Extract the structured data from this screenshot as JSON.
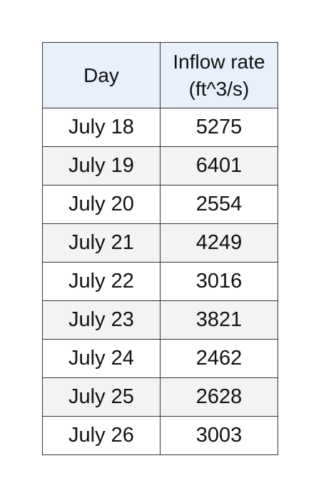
{
  "table": {
    "columns": [
      "Day",
      "Inflow rate",
      "(ft^3/s)"
    ],
    "rows": [
      [
        "July 18",
        "5275"
      ],
      [
        "July 19",
        "6401"
      ],
      [
        "July 20",
        "2554"
      ],
      [
        "July 21",
        "4249"
      ],
      [
        "July 22",
        "3016"
      ],
      [
        "July 23",
        "3821"
      ],
      [
        "July 24",
        "2462"
      ],
      [
        "July 25",
        "2628"
      ],
      [
        "July 26",
        "3003"
      ]
    ],
    "header_background": "#e8f0fb",
    "alt_row_background": "#f2f3f5"
  }
}
